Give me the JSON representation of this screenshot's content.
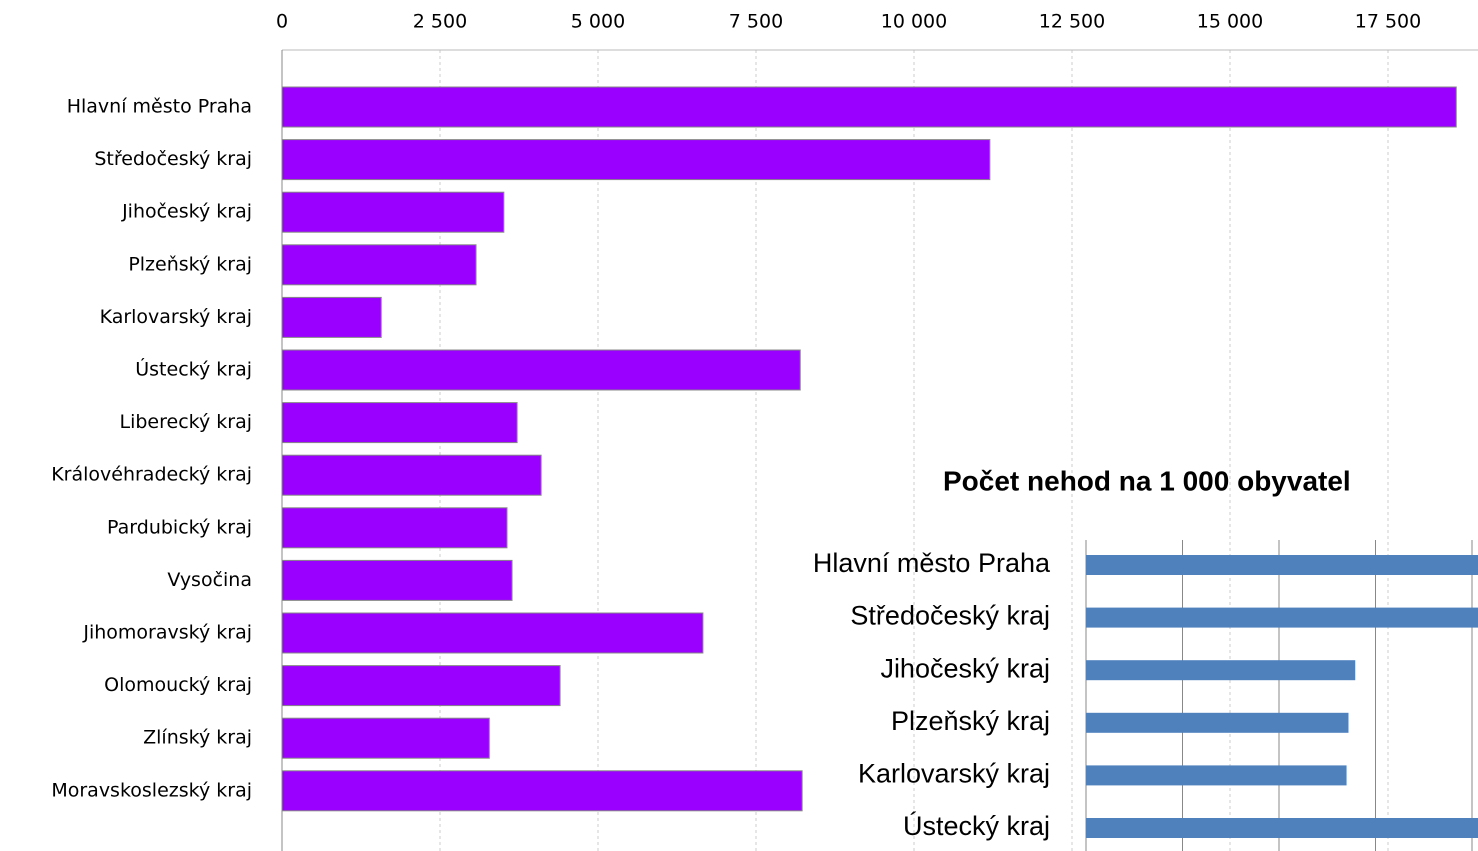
{
  "chart_data": [
    {
      "type": "bar",
      "orientation": "horizontal",
      "categories": [
        "Hlavní město Praha",
        "Středočeský kraj",
        "Jihočeský kraj",
        "Plzeňský kraj",
        "Karlovarský kraj",
        "Ústecký kraj",
        "Liberecký kraj",
        "Královéhradecký kraj",
        "Pardubický kraj",
        "Vysočina",
        "Jihomoravský kraj",
        "Olomoucký kraj",
        "Zlínský kraj",
        "Moravskoslezský kraj"
      ],
      "values": [
        18580,
        11200,
        3510,
        3070,
        1570,
        8200,
        3720,
        4100,
        3560,
        3640,
        6660,
        4400,
        3280,
        8230
      ],
      "color": "#9900ff",
      "xlim": [
        0,
        19000
      ],
      "xticks": [
        0,
        {
          "value": 2500,
          "label": "2 500"
        },
        {
          "value": 5000,
          "label": "5 000"
        },
        {
          "value": 7500,
          "label": "7 500"
        },
        {
          "value": 10000,
          "label": "10 000"
        },
        {
          "value": 12500,
          "label": "12 500"
        },
        {
          "value": 15000,
          "label": "15 000"
        },
        {
          "value": 17500,
          "label": "17 500"
        }
      ],
      "grid": true
    },
    {
      "type": "bar",
      "orientation": "horizontal",
      "title": "Počet nehod na 1 000 obyvatel",
      "categories": [
        "Hlavní město Praha",
        "Středočeský kraj",
        "Jihočeský kraj",
        "Plzeňský kraj",
        "Karlovarský kraj",
        "Ústecký kraj"
      ],
      "values": [
        4.5,
        4.3,
        2.79,
        2.72,
        2.7,
        4.2
      ],
      "color": "#4f81bd",
      "xlim": [
        0,
        5
      ],
      "xticks": [
        1,
        2,
        3,
        4
      ],
      "grid": true
    }
  ]
}
